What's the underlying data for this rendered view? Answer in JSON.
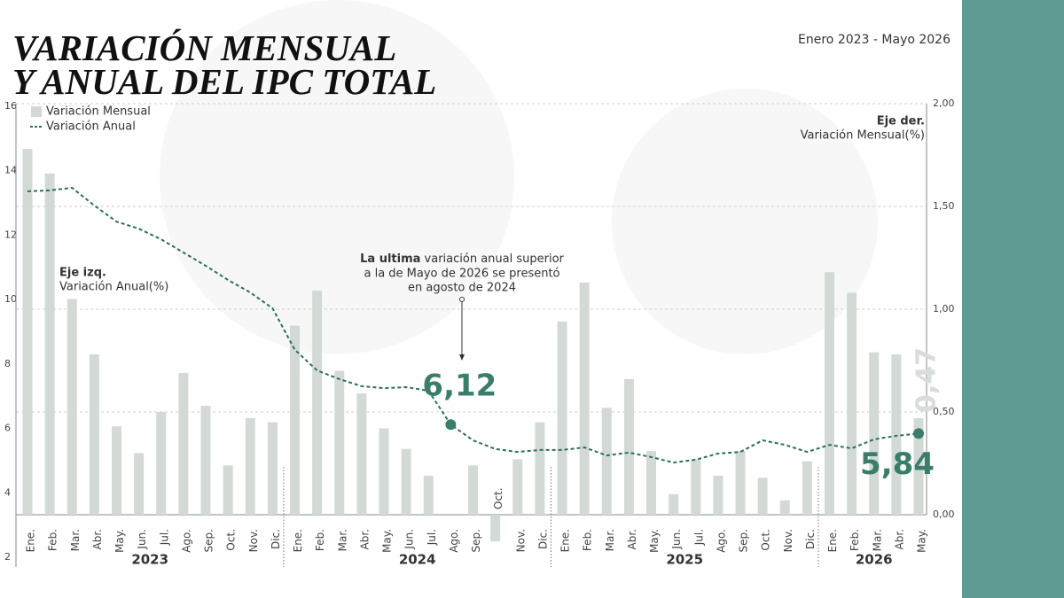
{
  "chart_data": {
    "type": "combo",
    "title_lines": [
      "VARIACIÓN MENSUAL",
      "Y ANUAL DEL IPC TOTAL"
    ],
    "subtitle": "Enero 2023 - Mayo 2026",
    "left_axis_title": {
      "bold": "Eje izq.",
      "text": "Variación Anual(%)"
    },
    "right_axis_title": {
      "bold": "Eje der.",
      "text": "Variación Mensual(%)"
    },
    "annotation": {
      "bold": "La ultima",
      "lines": [
        "variación anual superior",
        "a la de Mayo de 2026 se presentó",
        "en agosto de 2024"
      ]
    },
    "categories": [
      "Ene.",
      "Feb.",
      "Mar.",
      "Abr.",
      "May.",
      "Jun.",
      "Jul.",
      "Ago.",
      "Sep.",
      "Oct.",
      "Nov.",
      "Dic.",
      "Ene.",
      "Feb.",
      "Mar.",
      "Abr.",
      "May.",
      "Jun.",
      "Jul.",
      "Ago.",
      "Sep.",
      "Oct.",
      "Nov.",
      "Dic.",
      "Ene.",
      "Feb.",
      "Mar.",
      "Abr.",
      "May.",
      "Jun.",
      "Jul.",
      "Ago.",
      "Sep.",
      "Oct.",
      "Nov.",
      "Dic.",
      "Ene.",
      "Feb.",
      "Mar.",
      "Abr.",
      "May."
    ],
    "years": [
      "2023",
      "2024",
      "2025",
      "2026"
    ],
    "series": [
      {
        "name": "Variación Mensual",
        "type": "bar",
        "axis": "y2",
        "color": "#d3dad5",
        "values": [
          1.78,
          1.66,
          1.05,
          0.78,
          0.43,
          0.3,
          0.5,
          0.69,
          0.53,
          0.24,
          0.47,
          0.45,
          0.92,
          1.09,
          0.7,
          0.59,
          0.42,
          0.32,
          0.19,
          0.0,
          0.24,
          -0.13,
          0.27,
          0.45,
          0.94,
          1.13,
          0.52,
          0.66,
          0.31,
          0.1,
          0.27,
          0.19,
          0.31,
          0.18,
          0.07,
          0.26,
          1.18,
          1.08,
          0.79,
          0.78,
          0.47
        ],
        "value_labels": [
          null,
          null,
          null,
          null,
          null,
          null,
          null,
          null,
          null,
          null,
          null,
          null,
          null,
          null,
          null,
          null,
          null,
          null,
          null,
          null,
          null,
          null,
          null,
          null,
          null,
          null,
          null,
          null,
          null,
          null,
          null,
          null,
          null,
          null,
          null,
          null,
          null,
          null,
          null,
          null,
          "0,47"
        ]
      },
      {
        "name": "Variación Anual",
        "type": "line",
        "color": "#2e6e5c",
        "values": [
          13.36,
          13.39,
          13.47,
          12.92,
          12.42,
          12.2,
          11.87,
          11.46,
          11.05,
          10.61,
          10.22,
          9.73,
          8.44,
          7.8,
          7.53,
          7.31,
          7.25,
          7.28,
          7.17,
          6.12,
          5.63,
          5.36,
          5.27,
          5.33,
          5.33,
          5.41,
          5.16,
          5.25,
          5.11,
          4.94,
          5.03,
          5.22,
          5.27,
          5.63,
          5.49,
          5.27,
          5.49,
          5.38,
          5.66,
          5.77,
          5.84
        ],
        "value_labels": [
          null,
          null,
          null,
          null,
          null,
          null,
          null,
          null,
          null,
          null,
          null,
          null,
          null,
          null,
          null,
          null,
          null,
          null,
          null,
          "6,12",
          null,
          null,
          null,
          null,
          null,
          null,
          null,
          null,
          null,
          null,
          null,
          null,
          null,
          null,
          null,
          null,
          null,
          null,
          null,
          null,
          "5,84"
        ]
      }
    ],
    "ylim": [
      2,
      16
    ],
    "yticks": [
      2,
      4,
      6,
      8,
      10,
      12,
      14,
      16
    ],
    "y2lim": [
      0,
      2
    ],
    "y2ticks": [
      {
        "value": 0,
        "label": "0,00"
      },
      {
        "value": 0.5,
        "label": "0,50"
      },
      {
        "value": 1,
        "label": "1,00"
      },
      {
        "value": 1.5,
        "label": "1,50"
      },
      {
        "value": 2,
        "label": "2,00"
      }
    ],
    "grid": true
  }
}
